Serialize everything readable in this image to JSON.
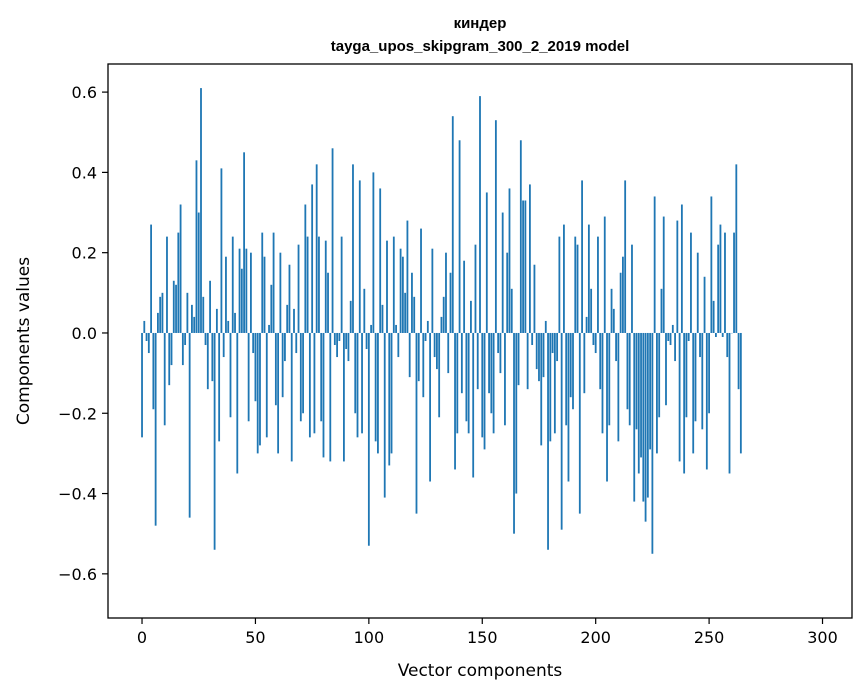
{
  "chart_data": {
    "type": "bar",
    "title": "киндер",
    "subtitle": "tayga_upos_skipgram_300_2_2019 model",
    "xlabel": "Vector components",
    "ylabel": "Components values",
    "xlim": [
      -15,
      313
    ],
    "ylim": [
      -0.71,
      0.67
    ],
    "xticks": [
      0,
      50,
      100,
      150,
      200,
      250,
      300
    ],
    "xtick_labels": [
      "0",
      "50",
      "100",
      "150",
      "200",
      "250",
      "300"
    ],
    "yticks": [
      -0.6,
      -0.4,
      -0.2,
      0.0,
      0.2,
      0.4,
      0.6
    ],
    "ytick_labels": [
      "−0.6",
      "−0.4",
      "−0.2",
      "0.0",
      "0.2",
      "0.4",
      "0.6"
    ],
    "color": "#1f77b4",
    "values": [
      -0.26,
      0.03,
      -0.02,
      -0.05,
      0.27,
      -0.19,
      -0.48,
      0.05,
      0.09,
      0.1,
      -0.23,
      0.24,
      -0.13,
      -0.08,
      0.13,
      0.12,
      0.25,
      0.32,
      -0.08,
      -0.03,
      0.1,
      -0.46,
      0.07,
      0.04,
      0.43,
      0.3,
      0.61,
      0.09,
      -0.03,
      -0.14,
      0.13,
      -0.12,
      -0.54,
      0.06,
      -0.27,
      0.41,
      -0.06,
      0.19,
      0.03,
      -0.21,
      0.24,
      0.05,
      -0.35,
      0.21,
      0.16,
      0.45,
      0.21,
      -0.22,
      0.2,
      -0.05,
      -0.17,
      -0.3,
      -0.28,
      0.25,
      0.19,
      -0.26,
      0.02,
      0.12,
      0.25,
      -0.18,
      -0.3,
      0.2,
      -0.16,
      -0.07,
      0.07,
      0.17,
      -0.32,
      0.06,
      -0.05,
      0.22,
      -0.22,
      -0.2,
      0.32,
      0.24,
      -0.26,
      0.37,
      -0.25,
      0.42,
      0.24,
      -0.22,
      -0.31,
      0.23,
      0.15,
      -0.32,
      0.46,
      -0.03,
      -0.06,
      -0.02,
      0.24,
      -0.32,
      -0.04,
      -0.07,
      0.08,
      0.42,
      -0.2,
      -0.26,
      0.38,
      -0.25,
      0.11,
      -0.04,
      -0.53,
      0.02,
      0.4,
      -0.27,
      -0.3,
      0.36,
      0.07,
      -0.41,
      0.23,
      -0.33,
      -0.3,
      0.24,
      0.02,
      -0.06,
      0.21,
      0.19,
      0.1,
      0.28,
      -0.11,
      0.15,
      0.09,
      -0.45,
      -0.12,
      0.26,
      -0.16,
      -0.02,
      0.03,
      -0.37,
      0.21,
      -0.06,
      -0.09,
      -0.21,
      0.04,
      0.09,
      0.2,
      -0.1,
      0.15,
      0.54,
      -0.34,
      -0.25,
      0.48,
      -0.15,
      0.18,
      -0.22,
      -0.25,
      0.08,
      -0.36,
      0.22,
      -0.14,
      0.59,
      -0.26,
      -0.29,
      0.35,
      -0.15,
      -0.2,
      -0.25,
      0.53,
      -0.05,
      -0.1,
      0.3,
      -0.23,
      0.2,
      0.36,
      0.11,
      -0.5,
      -0.4,
      -0.13,
      0.48,
      0.33,
      0.33,
      -0.14,
      0.37,
      -0.03,
      0.17,
      -0.09,
      -0.12,
      -0.28,
      -0.11,
      0.03,
      -0.54,
      -0.27,
      -0.05,
      -0.25,
      -0.07,
      0.24,
      -0.49,
      0.27,
      -0.23,
      -0.37,
      -0.16,
      -0.19,
      0.24,
      0.22,
      -0.45,
      0.38,
      -0.15,
      0.04,
      0.27,
      0.11,
      -0.03,
      -0.05,
      0.24,
      -0.14,
      -0.25,
      0.29,
      -0.37,
      -0.23,
      0.11,
      0.06,
      -0.07,
      -0.27,
      0.15,
      0.19,
      0.38,
      -0.19,
      -0.23,
      0.22,
      -0.42,
      -0.24,
      -0.35,
      -0.31,
      -0.42,
      -0.47,
      -0.41,
      -0.29,
      -0.55,
      0.34,
      -0.3,
      -0.21,
      0.11,
      0.29,
      -0.18,
      -0.02,
      -0.03,
      0.02,
      -0.07,
      0.28,
      -0.32,
      0.32,
      -0.35,
      -0.21,
      -0.02,
      0.25,
      -0.3,
      -0.22,
      0.2,
      -0.06,
      -0.24,
      0.14,
      -0.34,
      -0.2,
      0.34,
      0.08,
      -0.01,
      0.22,
      0.27,
      -0.01,
      0.25,
      -0.06,
      -0.35,
      0.0,
      0.25,
      0.42,
      -0.14,
      -0.3
    ]
  }
}
